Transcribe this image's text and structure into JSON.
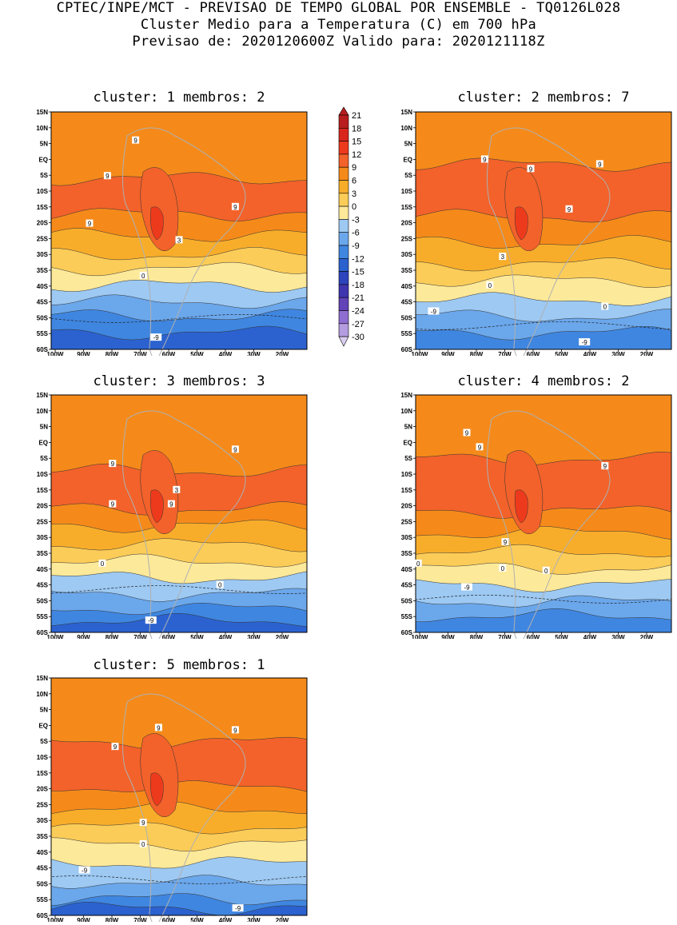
{
  "header": {
    "line1": "CPTEC/INPE/MCT - PREVISAO DE TEMPO GLOBAL POR ENSEMBLE - TQ0126L028",
    "line2": "Cluster Medio para a Temperatura (C) em 700 hPa",
    "line3": "Previsao de: 2020120600Z   Valido para: 2020121118Z"
  },
  "panels": [
    {
      "title": "cluster: 1  membros: 2"
    },
    {
      "title": "cluster: 2  membros: 7"
    },
    {
      "title": "cluster: 3  membros: 3"
    },
    {
      "title": "cluster: 4  membros: 2"
    },
    {
      "title": "cluster: 5  membros: 1"
    }
  ],
  "axes": {
    "lat_labels": [
      "15N",
      "10N",
      "5N",
      "EQ",
      "5S",
      "10S",
      "15S",
      "20S",
      "25S",
      "30S",
      "35S",
      "40S",
      "45S",
      "50S",
      "55S",
      "60S"
    ],
    "lon_labels": [
      "100W",
      "90W",
      "80W",
      "70W",
      "60W",
      "50W",
      "40W",
      "30W",
      "20W"
    ]
  },
  "colorbar": {
    "labels": [
      "21",
      "18",
      "15",
      "12",
      "9",
      "6",
      "3",
      "0",
      "-3",
      "-6",
      "-9",
      "-12",
      "-15",
      "-18",
      "-21",
      "-24",
      "-27",
      "-30"
    ],
    "colors": [
      "#b81e1e",
      "#d8261c",
      "#ee3a1c",
      "#f2622a",
      "#f58a1a",
      "#f8ad2a",
      "#fbcc58",
      "#fde99a",
      "#9dc9f3",
      "#6ba7eb",
      "#3f86e0",
      "#2b62cf",
      "#2d44bd",
      "#3f35ae",
      "#6243b8",
      "#8e6ed0",
      "#b49ce0",
      "#d9cdef"
    ]
  },
  "contour_labels": {
    "p1": [
      "9",
      "9",
      "9",
      "9",
      "3",
      "0",
      "-9"
    ],
    "p2": [
      "9",
      "9",
      "9",
      "9",
      "3",
      "0",
      "-9",
      "0",
      "-9"
    ],
    "p3": [
      "9",
      "9",
      "9",
      "3",
      "9",
      "0",
      "0",
      "-9"
    ],
    "p4": [
      "9",
      "9",
      "9",
      "9",
      "0",
      "0",
      "-9",
      "0"
    ],
    "p5": [
      "9",
      "9",
      "9",
      "9",
      "0",
      "-9",
      "-9"
    ]
  }
}
